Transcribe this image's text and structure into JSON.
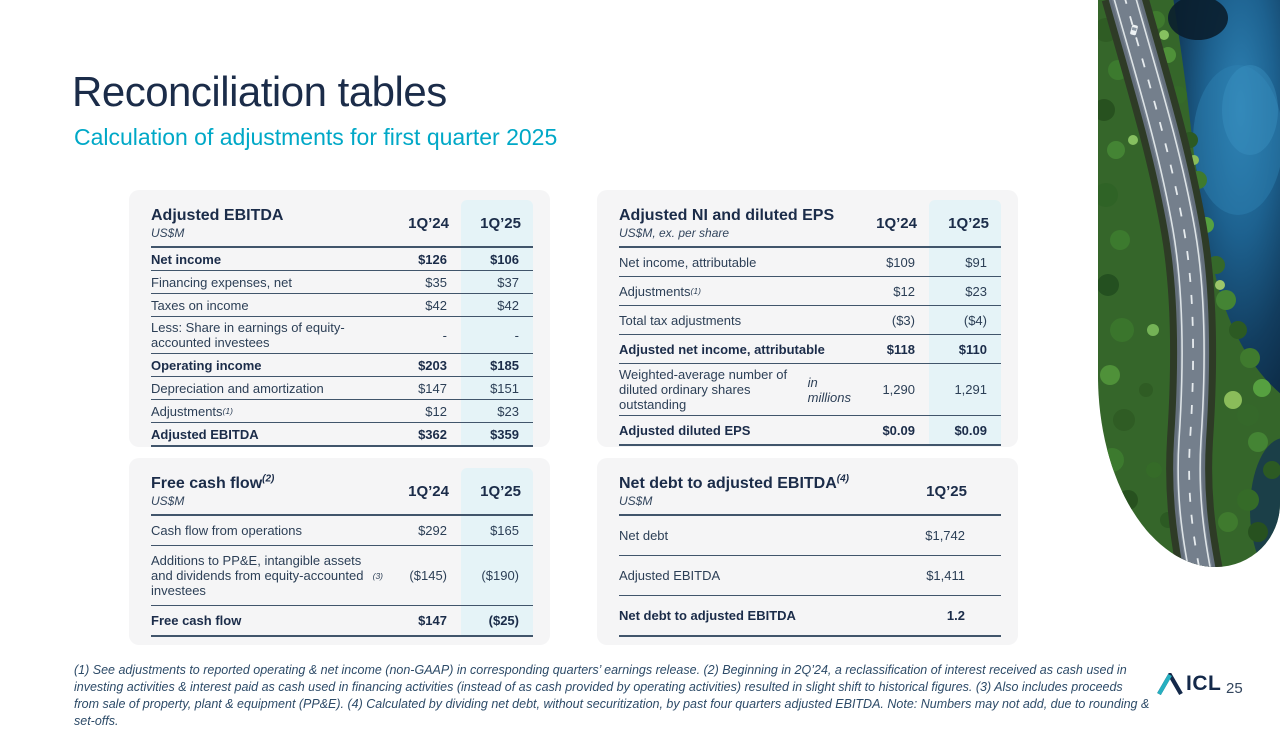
{
  "slide": {
    "title": "Reconciliation tables",
    "subtitle": "Calculation of adjustments for first quarter 2025",
    "page_number": "25",
    "logo_text": "ICL"
  },
  "colors": {
    "accent_teal": "#00a8c7",
    "navy": "#1b2c49",
    "card_bg": "#f5f5f6",
    "highlight_column": "#e5f3f7",
    "row_border": "#41556b"
  },
  "tables": [
    {
      "css": "c-ebitda",
      "title": "Adjusted EBITDA",
      "title_sup": "",
      "unit": "US$M",
      "columns": [
        "1Q’24",
        "1Q’25"
      ],
      "highlight_last_col": true,
      "rows": [
        {
          "label": "Net income",
          "values": [
            "$126",
            "$106"
          ],
          "bold": true
        },
        {
          "label": "Financing expenses, net",
          "values": [
            "$35",
            "$37"
          ]
        },
        {
          "label": "Taxes on income",
          "values": [
            "$42",
            "$42"
          ]
        },
        {
          "label": "Less: Share in earnings of equity-accounted investees",
          "values": [
            "-",
            "-"
          ]
        },
        {
          "label": "Operating income",
          "values": [
            "$203",
            "$185"
          ],
          "bold": true
        },
        {
          "label": "Depreciation and amortization",
          "values": [
            "$147",
            "$151"
          ]
        },
        {
          "label": "Adjustments",
          "sup": "(1)",
          "values": [
            "$12",
            "$23"
          ]
        },
        {
          "label": "Adjusted EBITDA",
          "values": [
            "$362",
            "$359"
          ],
          "bold": true
        }
      ]
    },
    {
      "css": "c-ni",
      "title": "Adjusted NI and diluted EPS",
      "title_sup": "",
      "unit": "US$M, ex. per share",
      "columns": [
        "1Q’24",
        "1Q’25"
      ],
      "highlight_last_col": true,
      "rows": [
        {
          "label": "Net income, attributable",
          "values": [
            "$109",
            "$91"
          ]
        },
        {
          "label": "Adjustments",
          "sup": "(1)",
          "values": [
            "$12",
            "$23"
          ]
        },
        {
          "label": "Total tax adjustments",
          "values": [
            "($3)",
            "($4)"
          ]
        },
        {
          "label": "Adjusted net income, attributable",
          "values": [
            "$118",
            "$110"
          ],
          "bold": true
        },
        {
          "label": "Weighted-average number of diluted ordinary shares outstanding",
          "italic": "in millions",
          "values": [
            "1,290",
            "1,291"
          ]
        },
        {
          "label": "Adjusted diluted EPS",
          "values": [
            "$0.09",
            "$0.09"
          ],
          "bold": true
        }
      ]
    },
    {
      "css": "c-fcf",
      "title": "Free cash flow",
      "title_sup": "(2)",
      "unit": "US$M",
      "columns": [
        "1Q’24",
        "1Q’25"
      ],
      "highlight_last_col": true,
      "rows": [
        {
          "label": "Cash flow from operations",
          "values": [
            "$292",
            "$165"
          ]
        },
        {
          "label": "Additions to PP&E, intangible assets and dividends from equity-accounted investees",
          "sup": "(3)",
          "values": [
            "($145)",
            "($190)"
          ]
        },
        {
          "label": "Free cash flow",
          "values": [
            "$147",
            "($25)"
          ],
          "bold": true
        }
      ]
    },
    {
      "css": "c-nd",
      "title": "Net debt to adjusted EBITDA",
      "title_sup": "(4)",
      "unit": "US$M",
      "columns": [
        "1Q’25"
      ],
      "highlight_last_col": false,
      "rows": [
        {
          "label": "Net debt",
          "values": [
            "$1,742"
          ]
        },
        {
          "label": "Adjusted EBITDA",
          "values": [
            "$1,411"
          ]
        },
        {
          "label": "Net debt to adjusted EBITDA",
          "values": [
            "1.2"
          ],
          "bold": true
        }
      ]
    }
  ],
  "footnote": {
    "line1": "(1) See adjustments to reported operating & net income (non-GAAP) in corresponding quarters’ earnings release. (2) Beginning in 2Q’24, a reclassification of interest received as cash used in",
    "line2": "investing activities & interest paid as cash used in financing activities (instead of as cash provided by operating activities) resulted in slight shift to historical figures. (3) Also includes proceeds",
    "line3": "from sale of property, plant & equipment (PP&E). (4) Calculated by dividing net debt, without securitization, by past four quarters adjusted EBITDA. Note: Numbers may not add, due to rounding & set-offs."
  }
}
